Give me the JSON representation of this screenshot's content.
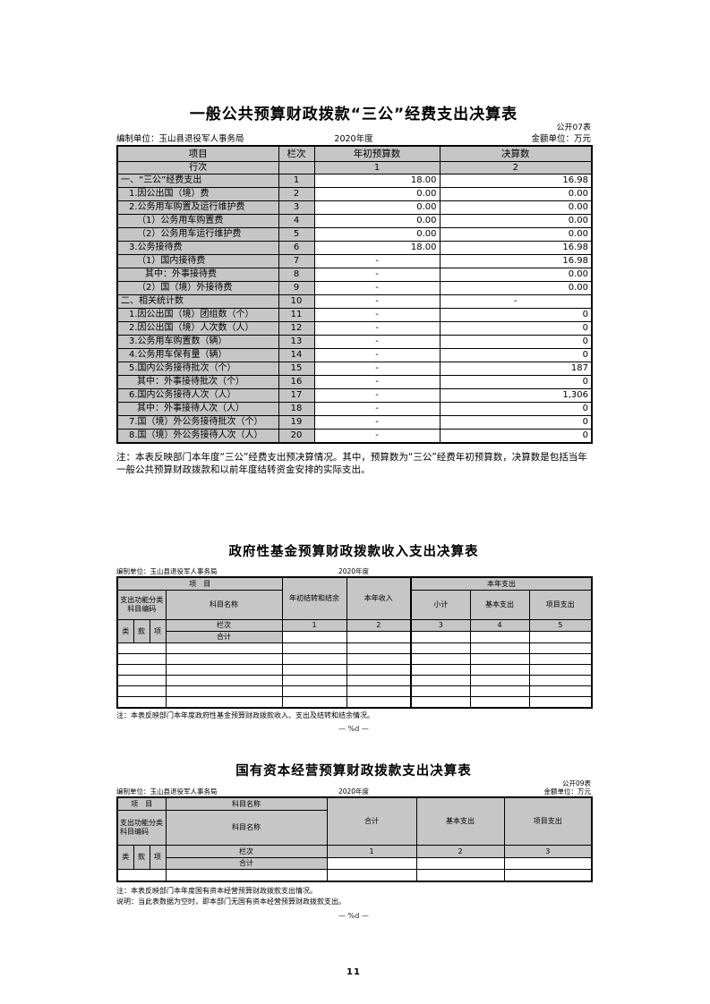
{
  "page": {
    "number": "11",
    "marker": "— %d —"
  },
  "table1": {
    "title": "一般公共预算财政拨款“三公”经费支出决算表",
    "table_code": "公开07表",
    "prepared_by": "编制单位：玉山县退役军人事务局",
    "period": "2020年度",
    "unit": "金额单位：万元",
    "columns": [
      "项目",
      "栏次",
      "年初预算数",
      "决算数"
    ],
    "row_header": {
      "label": "行次",
      "col1": "1",
      "col2": "2"
    },
    "rows": [
      {
        "label": "一、“三公”经费支出",
        "indent": 0,
        "line": "1",
        "budget": "18.00",
        "final": "16.98"
      },
      {
        "label": "1.因公出国（境）费",
        "indent": 1,
        "line": "2",
        "budget": "0.00",
        "final": "0.00"
      },
      {
        "label": "2.公务用车购置及运行维护费",
        "indent": 1,
        "line": "3",
        "budget": "0.00",
        "final": "0.00"
      },
      {
        "label": "（1）公务用车购置费",
        "indent": 2,
        "line": "4",
        "budget": "0.00",
        "final": "0.00"
      },
      {
        "label": "（2）公务用车运行维护费",
        "indent": 2,
        "line": "5",
        "budget": "0.00",
        "final": "0.00"
      },
      {
        "label": "3.公务接待费",
        "indent": 1,
        "line": "6",
        "budget": "18.00",
        "final": "16.98"
      },
      {
        "label": "（1）国内接待费",
        "indent": 2,
        "line": "7",
        "budget": "-",
        "final": "16.98"
      },
      {
        "label": "其中：外事接待费",
        "indent": 3,
        "line": "8",
        "budget": "-",
        "final": "0.00"
      },
      {
        "label": "（2）国（境）外接待费",
        "indent": 2,
        "line": "9",
        "budget": "-",
        "final": "0.00"
      },
      {
        "label": "二、相关统计数",
        "indent": 0,
        "line": "10",
        "budget": "-",
        "final": "-"
      },
      {
        "label": "1.因公出国（境）团组数（个）",
        "indent": 1,
        "line": "11",
        "budget": "-",
        "final": "0"
      },
      {
        "label": "2.因公出国（境）人次数（人）",
        "indent": 1,
        "line": "12",
        "budget": "-",
        "final": "0"
      },
      {
        "label": "3.公务用车购置数（辆）",
        "indent": 1,
        "line": "13",
        "budget": "-",
        "final": "0"
      },
      {
        "label": "4.公务用车保有量（辆）",
        "indent": 1,
        "line": "14",
        "budget": "-",
        "final": "0"
      },
      {
        "label": "5.国内公务接待批次（个）",
        "indent": 1,
        "line": "15",
        "budget": "-",
        "final": "187"
      },
      {
        "label": "其中：外事接待批次（个）",
        "indent": 2,
        "line": "16",
        "budget": "-",
        "final": "0"
      },
      {
        "label": "6.国内公务接待人次（人）",
        "indent": 1,
        "line": "17",
        "budget": "-",
        "final": "1,306"
      },
      {
        "label": "其中：外事接待人次（人）",
        "indent": 2,
        "line": "18",
        "budget": "-",
        "final": "0"
      },
      {
        "label": "7.国（境）外公务接待批次（个）",
        "indent": 1,
        "line": "19",
        "budget": "-",
        "final": "0"
      },
      {
        "label": "8.国（境）外公务接待人次（人）",
        "indent": 1,
        "line": "20",
        "budget": "-",
        "final": "0"
      }
    ],
    "note": "注：本表反映部门本年度“三公”经费支出预决算情况。其中，预算数为“三公”经费年初预算数，决算数是包括当年一般公共预算财政拨款和以前年度结转资金安排的实际支出。"
  },
  "table2": {
    "title": "政府性基金预算财政拨款收入支出决算表",
    "prepared_by": "编制单位：玉山县退役军人事务局",
    "period": "2020年度",
    "header": {
      "item": "项　目",
      "code": "支出功能分类科目编码",
      "subject": "科目名称",
      "carryover": "年初结转和结余",
      "income": "本年收入",
      "expenditure_group": "本年支出",
      "subtotal": "小计",
      "basic": "基本支出",
      "project": "项目支出",
      "code_cols": [
        "类",
        "款",
        "项"
      ],
      "lanci": "栏次",
      "col_numbers": [
        "1",
        "2",
        "3",
        "4",
        "5"
      ],
      "total_label": "合计"
    },
    "empty_rows": 6,
    "note": "注：本表反映部门本年度政府性基金预算财政拨款收入、支出及结转和结余情况。"
  },
  "table3": {
    "title": "国有资本经营预算财政拨款支出决算表",
    "table_code": "公开09表",
    "prepared_by": "编制单位：玉山县退役军人事务局",
    "period": "2020年度",
    "unit": "金额单位：万元",
    "header": {
      "item": "项　目",
      "subject_top": "科目名称",
      "code": "支出功能分类科目编码",
      "subject": "科目名称",
      "total": "合计",
      "basic": "基本支出",
      "project": "项目支出",
      "code_cols": [
        "类",
        "款",
        "项"
      ],
      "lanci": "栏次",
      "col_numbers": [
        "1",
        "2",
        "3"
      ],
      "total_label": "合计"
    },
    "empty_rows": 1,
    "notes": [
      "注：本表反映部门本年度国有资本经营预算财政拨款支出情况。",
      "说明：当此表数据为空时，即本部门无国有资本经营预算财政拨款支出。"
    ]
  }
}
